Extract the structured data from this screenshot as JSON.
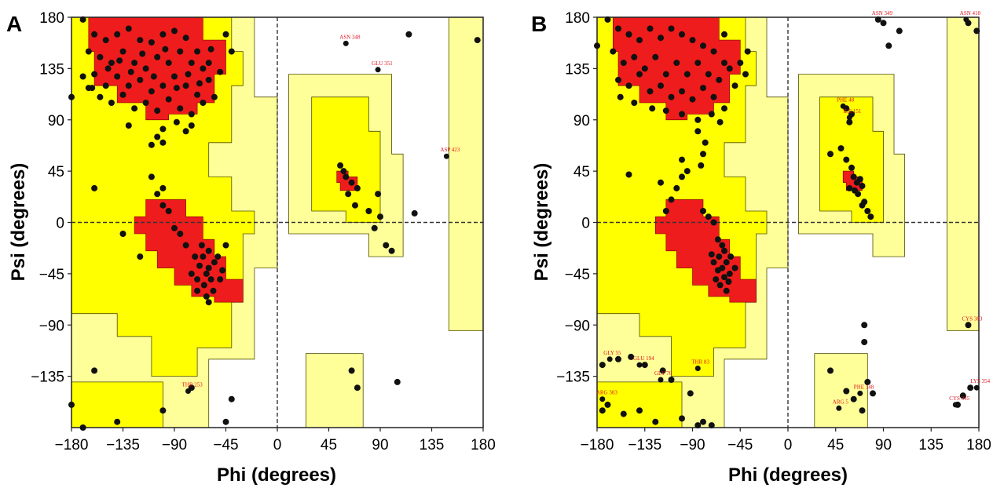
{
  "colors": {
    "core": "#ee1c1c",
    "allowed": "#ffff00",
    "generous": "#ffff99",
    "disallowed": "#ffffff",
    "point": "#111111",
    "outlier_label": "#e0101a",
    "region_edge": "#4d4d00"
  },
  "chart_data": [
    {
      "panel": "A",
      "type": "scatter",
      "xlabel": "Phi (degrees)",
      "ylabel": "Psi (degrees)",
      "xlim": [
        -180,
        180
      ],
      "ylim": [
        -180,
        180
      ],
      "xticks": [
        "−180",
        "−135",
        "−90",
        "−45",
        "0",
        "45",
        "90",
        "135",
        "180"
      ],
      "yticks": [
        "180",
        "135",
        "90",
        "45",
        "0",
        "−45",
        "−90",
        "−135"
      ],
      "labeled_outliers": [
        {
          "label": "ASN 348",
          "x": 60,
          "y": 157
        },
        {
          "label": "GLU 351",
          "x": 88,
          "y": 134
        },
        {
          "label": "ASP 423",
          "x": 148,
          "y": 58
        },
        {
          "label": "THR 253",
          "x": -78,
          "y": -148
        }
      ],
      "points": [
        [
          -170,
          178
        ],
        [
          -160,
          165
        ],
        [
          -150,
          160
        ],
        [
          -140,
          165
        ],
        [
          -130,
          170
        ],
        [
          -120,
          160
        ],
        [
          -110,
          158
        ],
        [
          -100,
          165
        ],
        [
          -90,
          168
        ],
        [
          -80,
          162
        ],
        [
          -70,
          150
        ],
        [
          -60,
          140
        ],
        [
          -165,
          150
        ],
        [
          -155,
          145
        ],
        [
          -145,
          140
        ],
        [
          -135,
          150
        ],
        [
          -125,
          140
        ],
        [
          -115,
          135
        ],
        [
          -105,
          145
        ],
        [
          -95,
          140
        ],
        [
          -85,
          150
        ],
        [
          -75,
          140
        ],
        [
          -65,
          135
        ],
        [
          -160,
          130
        ],
        [
          -150,
          120
        ],
        [
          -140,
          128
        ],
        [
          -130,
          120
        ],
        [
          -120,
          125
        ],
        [
          -110,
          115
        ],
        [
          -100,
          120
        ],
        [
          -90,
          128
        ],
        [
          -80,
          120
        ],
        [
          -70,
          112
        ],
        [
          -60,
          125
        ],
        [
          -50,
          132
        ],
        [
          -155,
          110
        ],
        [
          -145,
          105
        ],
        [
          -135,
          112
        ],
        [
          -125,
          100
        ],
        [
          -115,
          105
        ],
        [
          -105,
          98
        ],
        [
          -95,
          108
        ],
        [
          -85,
          100
        ],
        [
          -75,
          95
        ],
        [
          -65,
          105
        ],
        [
          -55,
          110
        ],
        [
          -170,
          128
        ],
        [
          -162,
          118
        ],
        [
          -148,
          135
        ],
        [
          -138,
          142
        ],
        [
          -128,
          132
        ],
        [
          -118,
          148
        ],
        [
          -108,
          128
        ],
        [
          -98,
          152
        ],
        [
          -88,
          118
        ],
        [
          -78,
          130
        ],
        [
          -68,
          122
        ],
        [
          -58,
          152
        ],
        [
          -130,
          85
        ],
        [
          -100,
          82
        ],
        [
          -88,
          88
        ],
        [
          -80,
          80
        ],
        [
          -75,
          85
        ],
        [
          -105,
          75
        ],
        [
          -100,
          70
        ],
        [
          -110,
          68
        ],
        [
          -45,
          165
        ],
        [
          -40,
          150
        ],
        [
          -165,
          118
        ],
        [
          -180,
          110
        ],
        [
          -65,
          -30
        ],
        [
          -60,
          -40
        ],
        [
          -55,
          -35
        ],
        [
          -62,
          -45
        ],
        [
          -68,
          -38
        ],
        [
          -58,
          -50
        ],
        [
          -70,
          -50
        ],
        [
          -64,
          -55
        ],
        [
          -60,
          -25
        ],
        [
          -52,
          -30
        ],
        [
          -66,
          -20
        ],
        [
          -72,
          -30
        ],
        [
          -75,
          -45
        ],
        [
          -56,
          -60
        ],
        [
          -62,
          -65
        ],
        [
          -48,
          -42
        ],
        [
          -80,
          -20
        ],
        [
          -85,
          -10
        ],
        [
          -90,
          -5
        ],
        [
          -95,
          10
        ],
        [
          -100,
          15
        ],
        [
          -105,
          25
        ],
        [
          -110,
          40
        ],
        [
          -100,
          30
        ],
        [
          -120,
          -30
        ],
        [
          -135,
          -10
        ],
        [
          -60,
          -70
        ],
        [
          -70,
          -60
        ],
        [
          -50,
          -50
        ],
        [
          -45,
          -20
        ],
        [
          55,
          50
        ],
        [
          60,
          40
        ],
        [
          65,
          35
        ],
        [
          58,
          45
        ],
        [
          70,
          30
        ],
        [
          62,
          25
        ],
        [
          68,
          15
        ],
        [
          88,
          25
        ],
        [
          80,
          10
        ],
        [
          90,
          5
        ],
        [
          85,
          -5
        ],
        [
          100,
          -25
        ],
        [
          95,
          -20
        ],
        [
          120,
          8
        ],
        [
          -160,
          30
        ],
        [
          -100,
          -165
        ],
        [
          -75,
          -145
        ],
        [
          -160,
          -130
        ],
        [
          -180,
          -160
        ],
        [
          -170,
          -180
        ],
        [
          -140,
          -175
        ],
        [
          -40,
          -155
        ],
        [
          65,
          -130
        ],
        [
          70,
          -145
        ],
        [
          105,
          -140
        ],
        [
          115,
          165
        ],
        [
          175,
          160
        ],
        [
          -45,
          -175
        ]
      ]
    },
    {
      "panel": "B",
      "type": "scatter",
      "xlabel": "Phi (degrees)",
      "ylabel": "Psi (degrees)",
      "xlim": [
        -180,
        180
      ],
      "ylim": [
        -180,
        180
      ],
      "xticks": [
        "−180",
        "−135",
        "−90",
        "−45",
        "0",
        "45",
        "90",
        "135",
        "180"
      ],
      "yticks": [
        "180",
        "135",
        "90",
        "45",
        "0",
        "−45",
        "−90",
        "−135"
      ],
      "labeled_outliers": [
        {
          "label": "ASN 349",
          "x": 85,
          "y": 178
        },
        {
          "label": "ASN 418",
          "x": 168,
          "y": 178
        },
        {
          "label": "PHE 48",
          "x": 52,
          "y": 102
        },
        {
          "label": "ILE 151",
          "x": 58,
          "y": 92
        },
        {
          "label": "CYS 383",
          "x": 170,
          "y": -90
        },
        {
          "label": "GLY 55",
          "x": -168,
          "y": -120
        },
        {
          "label": "GLU 194",
          "x": -140,
          "y": -125
        },
        {
          "label": "GLY 76",
          "x": -120,
          "y": -138
        },
        {
          "label": "THR 83",
          "x": -85,
          "y": -128
        },
        {
          "label": "PHE 348",
          "x": 68,
          "y": -150
        },
        {
          "label": "ARG 5",
          "x": 48,
          "y": -163
        },
        {
          "label": "ARG 303",
          "x": -175,
          "y": -155
        },
        {
          "label": "LYS 354",
          "x": 178,
          "y": -145
        },
        {
          "label": "CYS 345",
          "x": 158,
          "y": -160
        }
      ],
      "points": [
        [
          -170,
          178
        ],
        [
          -160,
          170
        ],
        [
          -150,
          165
        ],
        [
          -140,
          160
        ],
        [
          -130,
          170
        ],
        [
          -120,
          162
        ],
        [
          -110,
          170
        ],
        [
          -100,
          165
        ],
        [
          -90,
          160
        ],
        [
          -80,
          155
        ],
        [
          -70,
          150
        ],
        [
          -60,
          140
        ],
        [
          -165,
          150
        ],
        [
          -155,
          140
        ],
        [
          -145,
          145
        ],
        [
          -135,
          135
        ],
        [
          -125,
          145
        ],
        [
          -115,
          130
        ],
        [
          -105,
          140
        ],
        [
          -95,
          130
        ],
        [
          -85,
          140
        ],
        [
          -75,
          130
        ],
        [
          -65,
          125
        ],
        [
          -55,
          135
        ],
        [
          -160,
          125
        ],
        [
          -150,
          120
        ],
        [
          -140,
          130
        ],
        [
          -130,
          115
        ],
        [
          -120,
          120
        ],
        [
          -110,
          110
        ],
        [
          -100,
          115
        ],
        [
          -90,
          108
        ],
        [
          -80,
          118
        ],
        [
          -70,
          110
        ],
        [
          -60,
          100
        ],
        [
          -50,
          120
        ],
        [
          -158,
          110
        ],
        [
          -145,
          105
        ],
        [
          -128,
          100
        ],
        [
          -115,
          98
        ],
        [
          -100,
          95
        ],
        [
          -85,
          90
        ],
        [
          -72,
          95
        ],
        [
          -64,
          88
        ],
        [
          -45,
          140
        ],
        [
          -40,
          130
        ],
        [
          -38,
          150
        ],
        [
          -60,
          165
        ],
        [
          -85,
          80
        ],
        [
          -78,
          70
        ],
        [
          -80,
          60
        ],
        [
          -82,
          50
        ],
        [
          -95,
          45
        ],
        [
          -100,
          40
        ],
        [
          -105,
          30
        ],
        [
          -110,
          20
        ],
        [
          -115,
          10
        ],
        [
          -100,
          55
        ],
        [
          -120,
          35
        ],
        [
          -150,
          42
        ],
        [
          -65,
          -30
        ],
        [
          -62,
          -40
        ],
        [
          -58,
          -35
        ],
        [
          -60,
          -48
        ],
        [
          -66,
          -42
        ],
        [
          -56,
          -52
        ],
        [
          -64,
          -55
        ],
        [
          -70,
          -35
        ],
        [
          -60,
          -25
        ],
        [
          -54,
          -30
        ],
        [
          -68,
          -50
        ],
        [
          -62,
          -20
        ],
        [
          -58,
          -60
        ],
        [
          -72,
          -28
        ],
        [
          -66,
          -15
        ],
        [
          -55,
          -45
        ],
        [
          -50,
          -40
        ],
        [
          -75,
          5
        ],
        [
          -70,
          0
        ],
        [
          -80,
          10
        ],
        [
          55,
          55
        ],
        [
          60,
          48
        ],
        [
          62,
          40
        ],
        [
          65,
          35
        ],
        [
          68,
          38
        ],
        [
          58,
          30
        ],
        [
          70,
          32
        ],
        [
          63,
          28
        ],
        [
          66,
          25
        ],
        [
          72,
          18
        ],
        [
          75,
          10
        ],
        [
          70,
          15
        ],
        [
          78,
          5
        ],
        [
          50,
          65
        ],
        [
          40,
          60
        ],
        [
          55,
          100
        ],
        [
          60,
          95
        ],
        [
          58,
          88
        ],
        [
          72,
          -90
        ],
        [
          72,
          -105
        ],
        [
          85,
          178
        ],
        [
          90,
          175
        ],
        [
          105,
          168
        ],
        [
          95,
          155
        ],
        [
          178,
          168
        ],
        [
          170,
          175
        ],
        [
          -180,
          155
        ],
        [
          -150,
          165
        ],
        [
          -175,
          -125
        ],
        [
          -160,
          -120
        ],
        [
          -148,
          -118
        ],
        [
          -135,
          -125
        ],
        [
          -118,
          -130
        ],
        [
          -110,
          -138
        ],
        [
          -92,
          -150
        ],
        [
          -85,
          -178
        ],
        [
          -80,
          -175
        ],
        [
          -72,
          -178
        ],
        [
          -140,
          -165
        ],
        [
          -155,
          -168
        ],
        [
          -170,
          -160
        ],
        [
          -100,
          -172
        ],
        [
          -125,
          -175
        ],
        [
          -175,
          -165
        ],
        [
          40,
          -130
        ],
        [
          62,
          -155
        ],
        [
          70,
          -165
        ],
        [
          80,
          -150
        ],
        [
          75,
          -140
        ],
        [
          55,
          -148
        ],
        [
          165,
          -152
        ],
        [
          172,
          -145
        ],
        [
          160,
          -160
        ],
        [
          170,
          -90
        ]
      ]
    }
  ],
  "panels": [
    {
      "letter": "A",
      "xlabel": "Phi (degrees)",
      "ylabel": "Psi (degrees)",
      "xticks": [
        "−180",
        "−135",
        "−90",
        "−45",
        "0",
        "45",
        "90",
        "135",
        "180"
      ],
      "yticks": [
        "180",
        "135",
        "90",
        "45",
        "0",
        "−45",
        "−90",
        "−135"
      ]
    },
    {
      "letter": "B",
      "xlabel": "Phi (degrees)",
      "ylabel": "Psi (degrees)",
      "xticks": [
        "−180",
        "−135",
        "−90",
        "−45",
        "0",
        "45",
        "90",
        "135",
        "180"
      ],
      "yticks": [
        "180",
        "135",
        "90",
        "45",
        "0",
        "−45",
        "−90",
        "−135"
      ]
    }
  ]
}
